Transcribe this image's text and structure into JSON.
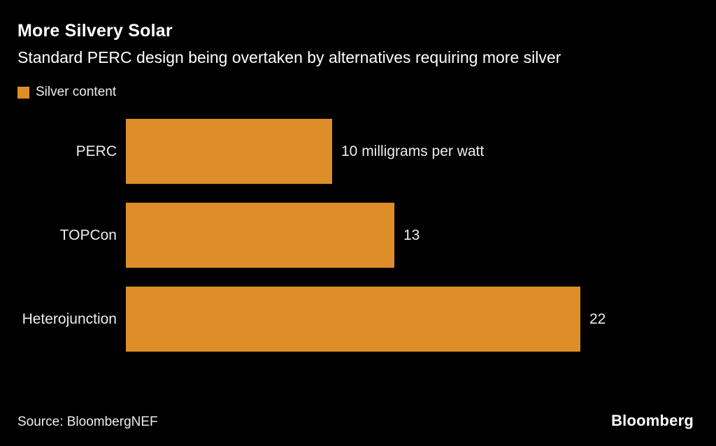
{
  "header": {
    "title": "More Silvery Solar",
    "subtitle": "Standard PERC design being overtaken by alternatives requiring more silver"
  },
  "legend": {
    "label": "Silver content"
  },
  "chart_data": {
    "type": "bar",
    "orientation": "horizontal",
    "title": "More Silvery Solar",
    "subtitle": "Standard PERC design being overtaken by alternatives requiring more silver",
    "series_name": "Silver content",
    "categories": [
      "PERC",
      "TOPCon",
      "Heterojunction"
    ],
    "values": [
      10,
      13,
      22
    ],
    "value_labels": [
      "10 milligrams per watt",
      "13",
      "22"
    ],
    "unit": "milligrams per watt",
    "xlim": [
      0,
      22
    ],
    "grid": false,
    "legend_position": "top-left",
    "axis_labels_shown": false
  },
  "footer": {
    "source": "Source: BloombergNEF",
    "brand": "Bloomberg"
  },
  "colors": {
    "background": "#000000",
    "accent": "#DD8E28",
    "text": "#FFFFFF",
    "muted_text": "#EDEDED"
  }
}
